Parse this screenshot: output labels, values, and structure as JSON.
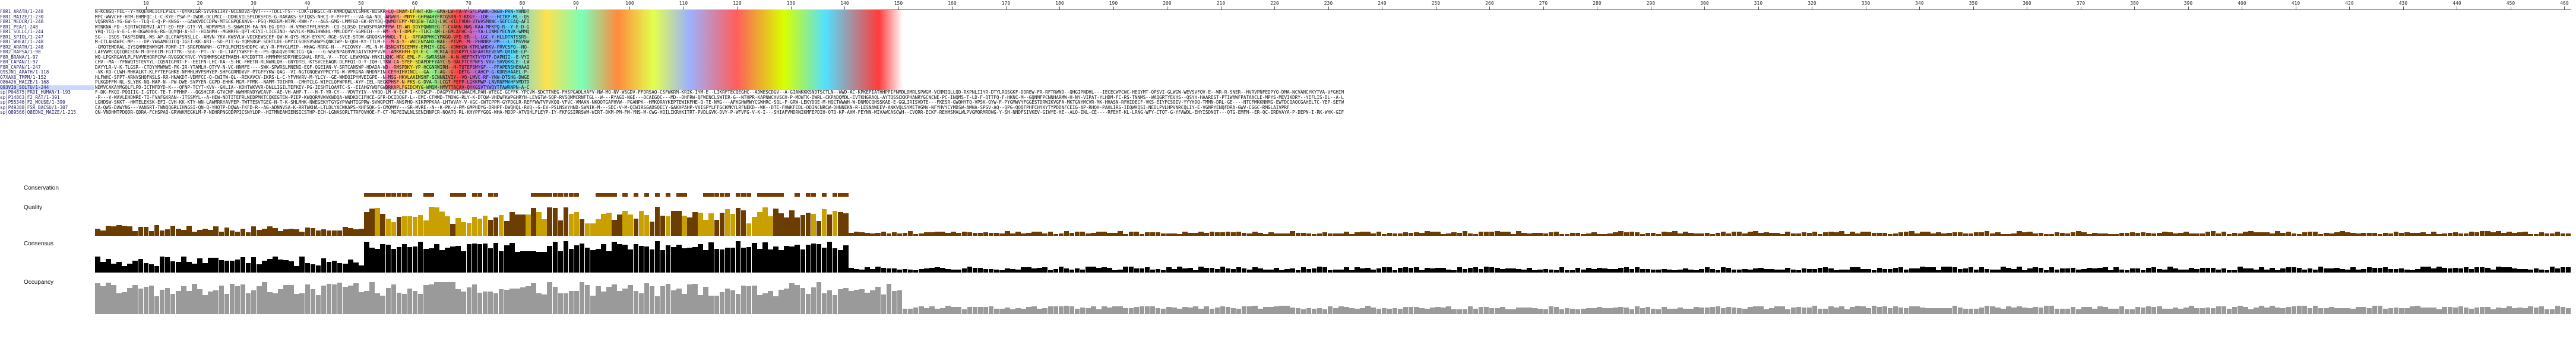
{
  "alignment": {
    "sequence_names": [
      "F8R1_ARATH/1-248",
      "F8R1_MAIZE/1-230",
      "F8R1_MEDCR/1-248",
      "F8R1_PEA/1-248",
      "F8R1_SOLLC/1-244",
      "F8R1_SPIOL/1-247",
      "F8R1_WHEAT/1-248",
      "F8R2_ARATH/1-248",
      "F8R2_RAPSA/1-98",
      "F8R_BRANA/1-97",
      "F8R_CAPAN/1-97",
      "F8R_CAPAN/1-247",
      "Q9SJN1_ARATH/1-118",
      "Q7XAX6_TMPM/1-152",
      "O86426_MAIZE/1-168",
      "Q93VI0_SOLTU/1-244",
      "sp|P04875|FRDI_HUMAN/1-193",
      "sp|P14863|F2_RAT/1-391",
      "sp|P55346|F2_MOUSE/1-390",
      "sp|P49388|FSR_BACSU/1-307",
      "sp|Q89566|Q8EDNI_MAIZE/1-215"
    ],
    "highlighted_row": 15,
    "ruler_ticks": [
      10,
      20,
      30,
      40,
      50,
      60,
      70,
      80,
      90,
      100,
      110,
      120,
      130,
      140,
      150,
      160,
      170,
      180,
      190,
      200,
      210,
      220,
      230,
      240,
      250,
      260,
      270,
      280,
      290,
      300,
      310,
      320,
      330,
      340,
      350,
      360,
      370,
      380,
      390,
      400,
      410,
      420,
      430,
      440,
      450,
      460
    ]
  },
  "annotations": {
    "conservation_label": "Conservation",
    "quality_label": "Quality",
    "consensus_label": "Consensus",
    "occupancy_label": "Occupancy"
  },
  "colors": {
    "quality_bar": "#c8a000",
    "quality_dark": "#6b3d00",
    "consensus_bar": "#000000",
    "occupancy_bar": "#9a9a9a",
    "conservation_bar": "#7a3b00"
  }
}
